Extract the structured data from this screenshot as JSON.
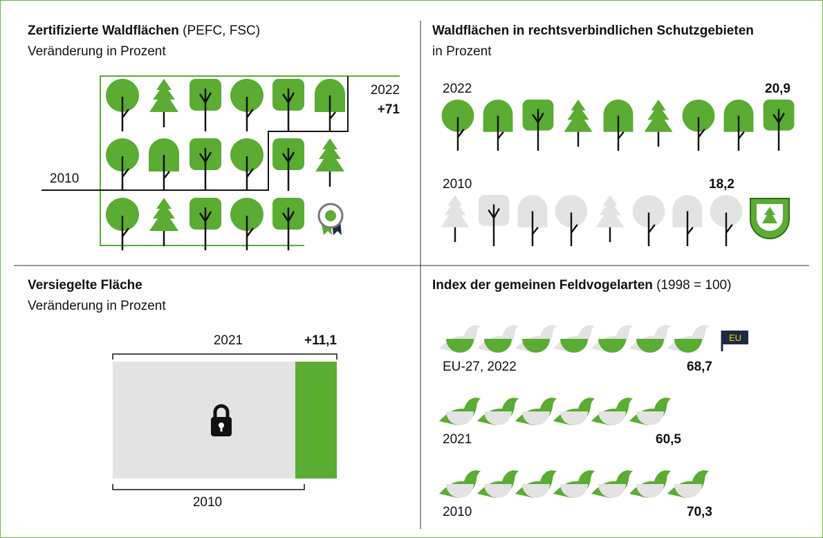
{
  "forest_certified": {
    "title": "Zertifizierte Waldflächen",
    "title_suffix": "(PEFC, FSC)",
    "subtitle": "Veränderung in Prozent",
    "year_new": "2022",
    "value": "+71",
    "year_old": "2010"
  },
  "forest_protected": {
    "title": "Waldflächen in rechtsverbindlichen Schutzgebieten",
    "subtitle": "in Prozent",
    "rows": [
      {
        "year": "2022",
        "value": "20,9"
      },
      {
        "year": "2010",
        "value": "18,2"
      }
    ]
  },
  "sealed_area": {
    "title": "Versiegelte Fläche",
    "subtitle": "Veränderung in Prozent",
    "year_new": "2021",
    "value": "+11,1",
    "year_old": "2010"
  },
  "field_birds": {
    "title": "Index der gemeinen Feldvogelarten",
    "title_suffix": "(1998 = 100)",
    "badge": "EU",
    "rows": [
      {
        "label": "EU-27, 2022",
        "value": "68,7"
      },
      {
        "label": "2021",
        "value": "60,5"
      },
      {
        "label": "2010",
        "value": "70,3"
      }
    ]
  }
}
